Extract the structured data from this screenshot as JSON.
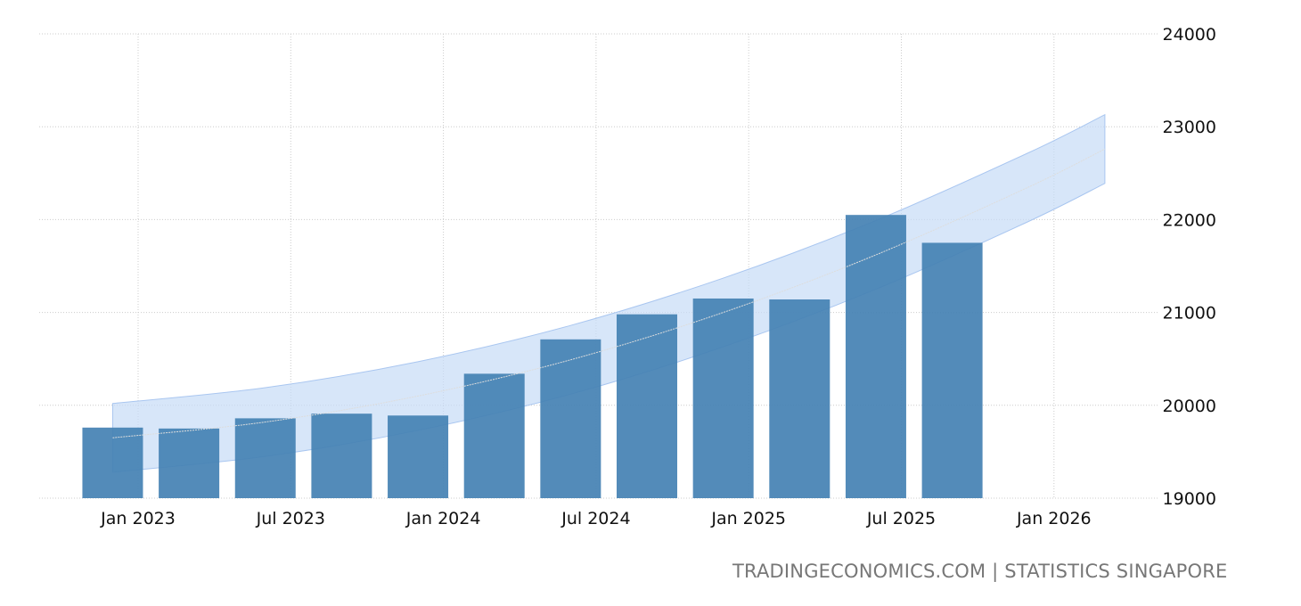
{
  "chart_data": {
    "type": "bar",
    "title": "",
    "xlabel": "",
    "ylabel": "",
    "ylim": [
      19000,
      24000
    ],
    "yticks": [
      "19000",
      "20000",
      "21000",
      "22000",
      "23000",
      "24000"
    ],
    "xticks": [
      {
        "label": "Jan 2023",
        "date": "2023-01"
      },
      {
        "label": "Jul 2023",
        "date": "2023-07"
      },
      {
        "label": "Jan 2024",
        "date": "2024-01"
      },
      {
        "label": "Jul 2024",
        "date": "2024-07"
      },
      {
        "label": "Jan 2025",
        "date": "2025-01"
      },
      {
        "label": "Jul 2025",
        "date": "2025-07"
      },
      {
        "label": "Jan 2026",
        "date": "2026-01"
      }
    ],
    "grid": true,
    "y_axis_side": "right",
    "bar_color": "#4682b4",
    "band_color": "#c6dbf7",
    "series": [
      {
        "dates": [
          "2022-12",
          "2023-03",
          "2023-06",
          "2023-09",
          "2023-12",
          "2024-03",
          "2024-06",
          "2024-09",
          "2024-12",
          "2025-03",
          "2025-06",
          "2025-09"
        ],
        "values": [
          19760,
          19750,
          19860,
          19910,
          19890,
          20340,
          20710,
          20980,
          21150,
          21140,
          22050,
          21750
        ]
      }
    ],
    "trend": {
      "dates": [
        "2022-12",
        "2023-06",
        "2023-12",
        "2024-06",
        "2024-12",
        "2025-06",
        "2025-12",
        "2026-03"
      ],
      "values": [
        19650,
        19820,
        20100,
        20490,
        21000,
        21620,
        22350,
        22760
      ],
      "upper": [
        20020,
        20190,
        20470,
        20860,
        21370,
        21990,
        22720,
        23130
      ],
      "lower": [
        19280,
        19450,
        19730,
        20120,
        20630,
        21250,
        21980,
        22390
      ]
    }
  },
  "footer": "TRADINGECONOMICS.COM | STATISTICS SINGAPORE"
}
